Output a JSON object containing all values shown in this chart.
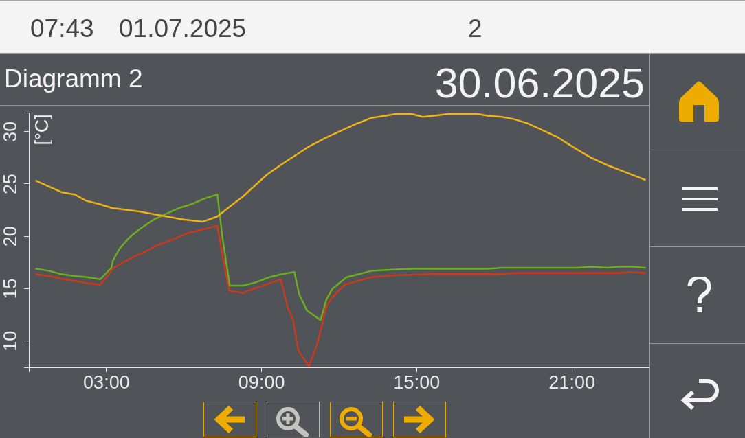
{
  "chart_data": {
    "type": "line",
    "title": "Diagramm 2",
    "subtitle": "30.06.2025",
    "ylabel": "[°C]",
    "annotations": [
      "07:43",
      "01.07.2025",
      "2"
    ],
    "xlim": [
      0,
      24
    ],
    "xticks": [
      {
        "value": 0,
        "label": null
      },
      {
        "value": 3,
        "label": "03:00"
      },
      {
        "value": 9,
        "label": "09:00"
      },
      {
        "value": 15,
        "label": "15:00"
      },
      {
        "value": 21,
        "label": "21:00"
      },
      {
        "value": 24,
        "label": null
      }
    ],
    "ylim": [
      7.5,
      31.8
    ],
    "yticks": [
      {
        "value": 7.5,
        "label": null
      },
      10,
      15,
      20,
      25,
      30,
      {
        "value": 31.8,
        "label": null
      }
    ],
    "grid": false,
    "legend": false,
    "marker": "none",
    "series": [
      {
        "color": "#efb318",
        "x": [
          0.28,
          1.28,
          1.77,
          2.21,
          2.7,
          3.23,
          4.21,
          5.09,
          5.98,
          6.73,
          7.29,
          7.75,
          8.28,
          8.72,
          9.21,
          9.79,
          10.41,
          10.85,
          11.47,
          12.18,
          12.62,
          13.24,
          13.77,
          14.22,
          14.79,
          15.23,
          15.63,
          16.25,
          17.32,
          17.76,
          18.29,
          18.74,
          19.27,
          19.89,
          20.42,
          21.13,
          21.75,
          22.37,
          22.99,
          23.83
        ],
        "values": [
          25.3,
          24.2,
          24.0,
          23.4,
          23.1,
          22.7,
          22.4,
          22.0,
          21.6,
          21.4,
          21.9,
          22.8,
          23.8,
          24.8,
          25.9,
          26.9,
          27.9,
          28.6,
          29.4,
          30.2,
          30.7,
          31.3,
          31.5,
          31.7,
          31.7,
          31.4,
          31.5,
          31.7,
          31.7,
          31.5,
          31.4,
          31.2,
          30.8,
          30.1,
          29.5,
          28.4,
          27.5,
          26.8,
          26.2,
          25.4
        ]
      },
      {
        "color": "#6cae1e",
        "x": [
          0.28,
          0.8,
          1.24,
          1.82,
          2.26,
          2.76,
          3.19,
          3.25,
          3.5,
          3.85,
          4.29,
          4.83,
          5.27,
          5.8,
          6.33,
          6.78,
          7.29,
          7.48,
          7.77,
          8.28,
          8.77,
          9.3,
          9.79,
          10.27,
          10.45,
          10.76,
          11.28,
          11.51,
          11.74,
          12.29,
          13.24,
          13.95,
          14.84,
          17.76,
          18.29,
          21.21,
          21.75,
          22.37,
          22.81,
          23.35,
          23.83
        ],
        "values": [
          16.9,
          16.7,
          16.4,
          16.2,
          16.1,
          15.9,
          17.0,
          17.7,
          18.8,
          19.8,
          20.7,
          21.6,
          22.1,
          22.7,
          23.1,
          23.6,
          24.0,
          20.0,
          15.3,
          15.3,
          15.6,
          16.1,
          16.4,
          16.6,
          14.5,
          12.9,
          12.0,
          14.0,
          15.0,
          16.1,
          16.7,
          16.8,
          16.9,
          16.9,
          17.0,
          17.0,
          17.1,
          17.0,
          17.1,
          17.1,
          17.0
        ]
      },
      {
        "color": "#cc3a1e",
        "x": [
          0.28,
          0.8,
          1.37,
          1.9,
          2.35,
          2.76,
          3.01,
          3.28,
          3.85,
          4.38,
          4.92,
          5.45,
          6.15,
          6.78,
          7.29,
          7.48,
          7.75,
          8.28,
          8.81,
          9.3,
          9.74,
          10.01,
          10.21,
          10.42,
          10.83,
          11.12,
          11.29,
          11.51,
          11.78,
          12.22,
          13.24,
          14.22,
          15.63,
          18.29,
          18.74,
          22.81,
          23.25,
          23.83
        ],
        "values": [
          16.4,
          16.2,
          15.9,
          15.7,
          15.5,
          15.4,
          16.1,
          17.0,
          17.8,
          18.4,
          19.1,
          19.6,
          20.3,
          20.7,
          21.0,
          18.3,
          14.8,
          14.6,
          15.1,
          15.5,
          15.9,
          13.2,
          12.1,
          9.1,
          7.6,
          9.5,
          11.1,
          13.4,
          14.3,
          15.4,
          16.1,
          16.3,
          16.4,
          16.4,
          16.5,
          16.5,
          16.6,
          16.5
        ]
      }
    ]
  }
}
